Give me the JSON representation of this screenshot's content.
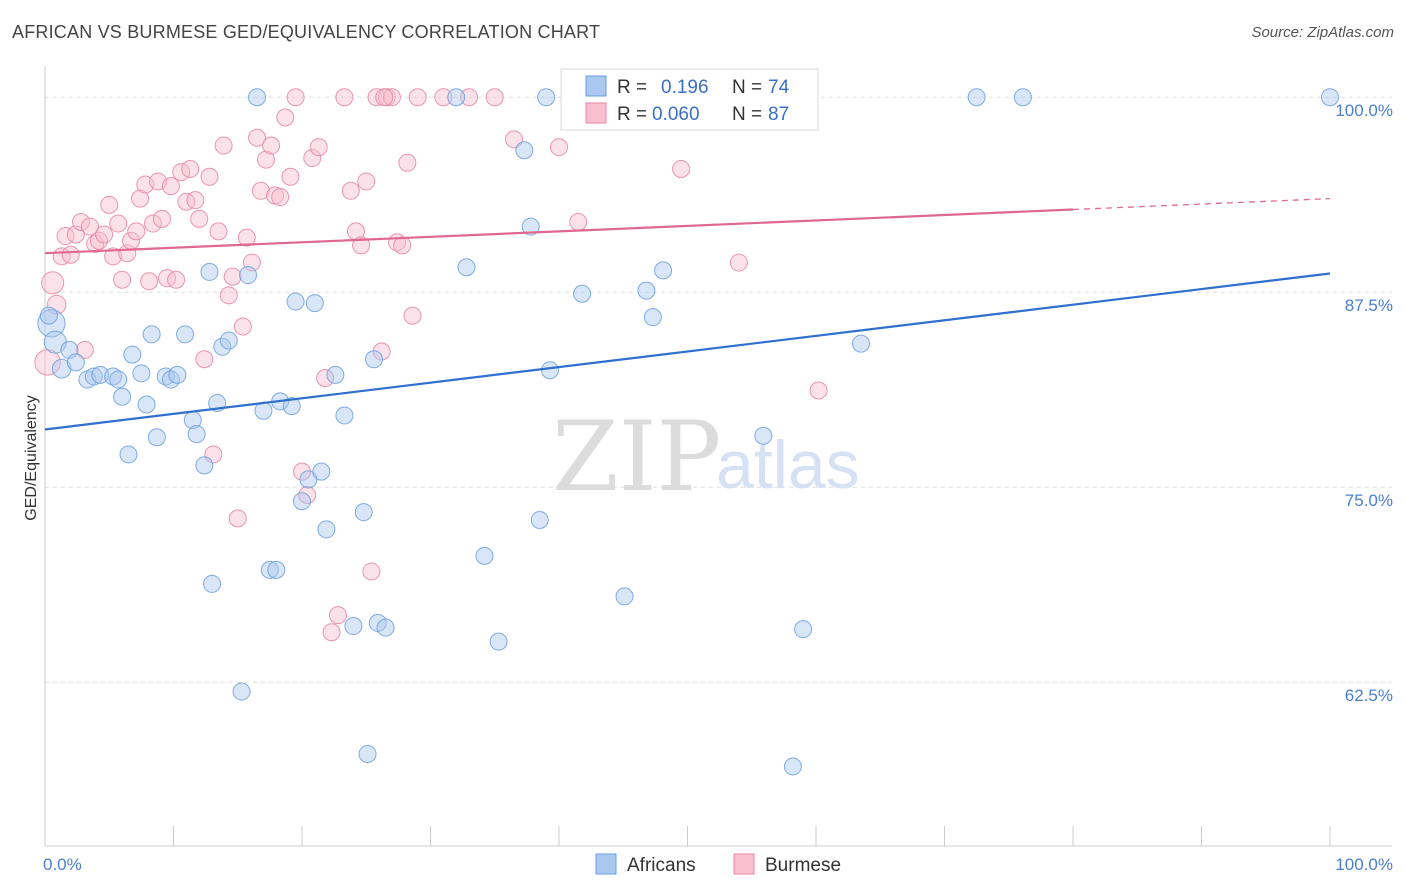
{
  "title": "AFRICAN VS BURMESE GED/EQUIVALENCY CORRELATION CHART",
  "source": "Source: ZipAtlas.com",
  "watermark": {
    "zip": "ZIP",
    "atlas": "atlas"
  },
  "colors": {
    "africans_fill": "#aac8f0",
    "africans_stroke": "#6b9fe0",
    "africans_line": "#2f6fd0",
    "burmese_fill": "#f7bfd0",
    "burmese_stroke": "#e8859f",
    "burmese_line": "#e06890",
    "grid": "#dddddd",
    "axis_text": "#4a7fd0"
  },
  "legend": {
    "row1": {
      "r_label": "R =",
      "r_value": "0.196",
      "n_label": "N =",
      "n_value": "74"
    },
    "row2": {
      "r_label": "R =",
      "r_value": "0.060",
      "n_label": "N =",
      "n_value": "87"
    }
  },
  "chart_data": {
    "type": "scatter",
    "title": "AFRICAN VS BURMESE GED/EQUIVALENCY CORRELATION CHART",
    "xlabel": "",
    "ylabel": "GED/Equivalency",
    "xlim": [
      0,
      100
    ],
    "ylim": [
      52.0,
      102.0
    ],
    "x_tick_labels": [
      "0.0%",
      "100.0%"
    ],
    "y_ticks": [
      62.5,
      75.0,
      87.5,
      100.0
    ],
    "y_tick_labels": [
      "62.5%",
      "75.0%",
      "87.5%",
      "100.0%"
    ],
    "grid": true,
    "legend_position": "top-center",
    "series": [
      {
        "name": "Africans",
        "r": 0.196,
        "n": 74,
        "trend": {
          "x0": 0,
          "y0": 78.7,
          "x1": 100,
          "y1": 88.7
        },
        "points": [
          [
            0.5,
            85.5,
            1.6
          ],
          [
            0.8,
            84.3,
            1.3
          ],
          [
            1.3,
            82.6,
            1.1
          ],
          [
            1.9,
            83.8,
            1
          ],
          [
            2.4,
            83.0,
            1
          ],
          [
            3.3,
            81.9,
            1
          ],
          [
            3.8,
            82.1,
            1
          ],
          [
            4.3,
            82.2,
            1
          ],
          [
            5.3,
            82.1,
            1
          ],
          [
            5.7,
            81.9,
            1
          ],
          [
            6.0,
            80.8,
            1
          ],
          [
            6.5,
            77.1,
            1
          ],
          [
            6.8,
            83.5,
            1
          ],
          [
            7.5,
            82.3,
            1
          ],
          [
            7.9,
            80.3,
            1
          ],
          [
            8.3,
            84.8,
            1
          ],
          [
            8.7,
            78.2,
            1
          ],
          [
            9.4,
            82.1,
            1
          ],
          [
            9.8,
            81.9,
            1
          ],
          [
            10.3,
            82.2,
            1
          ],
          [
            10.9,
            84.8,
            1
          ],
          [
            11.5,
            79.3,
            1
          ],
          [
            11.8,
            78.4,
            1
          ],
          [
            12.4,
            76.4,
            1
          ],
          [
            12.8,
            88.8,
            1
          ],
          [
            13.0,
            68.8,
            1
          ],
          [
            13.4,
            80.4,
            1
          ],
          [
            13.8,
            84.0,
            1
          ],
          [
            14.3,
            84.4,
            1
          ],
          [
            15.3,
            61.9,
            1
          ],
          [
            15.8,
            88.6,
            1
          ],
          [
            16.5,
            100.0,
            1
          ],
          [
            17.0,
            79.9,
            1
          ],
          [
            17.5,
            69.7,
            1
          ],
          [
            18.0,
            69.7,
            1
          ],
          [
            18.3,
            80.5,
            1
          ],
          [
            19.2,
            80.2,
            1
          ],
          [
            19.5,
            86.9,
            1
          ],
          [
            20.0,
            74.1,
            1
          ],
          [
            20.5,
            75.5,
            1
          ],
          [
            21.0,
            86.8,
            1
          ],
          [
            21.5,
            76.0,
            1
          ],
          [
            21.9,
            72.3,
            1
          ],
          [
            22.6,
            82.2,
            1
          ],
          [
            23.3,
            79.6,
            1
          ],
          [
            24.0,
            66.1,
            1
          ],
          [
            24.8,
            73.4,
            1
          ],
          [
            25.1,
            57.9,
            1
          ],
          [
            25.6,
            83.2,
            1
          ],
          [
            25.9,
            66.3,
            1
          ],
          [
            26.5,
            66.0,
            1
          ],
          [
            32.0,
            100.0,
            1
          ],
          [
            32.8,
            89.1,
            1
          ],
          [
            34.2,
            70.6,
            1
          ],
          [
            35.3,
            65.1,
            1
          ],
          [
            37.3,
            96.6,
            1
          ],
          [
            37.8,
            91.7,
            1
          ],
          [
            38.5,
            72.9,
            1
          ],
          [
            39.0,
            100.0,
            1
          ],
          [
            39.3,
            82.5,
            1
          ],
          [
            41.8,
            87.4,
            1
          ],
          [
            45.1,
            68.0,
            1
          ],
          [
            46.8,
            87.6,
            1
          ],
          [
            47.3,
            85.9,
            1
          ],
          [
            48.1,
            88.9,
            1
          ],
          [
            55.2,
            100.0,
            1
          ],
          [
            55.9,
            78.3,
            1
          ],
          [
            58.2,
            57.1,
            1
          ],
          [
            59.0,
            65.9,
            1
          ],
          [
            63.5,
            84.2,
            1
          ],
          [
            72.5,
            100.0,
            1
          ],
          [
            76.1,
            100.0,
            1
          ],
          [
            100.0,
            100.0,
            1
          ],
          [
            0.3,
            86.0,
            1
          ]
        ]
      },
      {
        "name": "Burmese",
        "r": 0.06,
        "n": 87,
        "trend": {
          "x0": 0,
          "y0": 90.0,
          "x1": 80,
          "y1": 92.8,
          "x_dash_end": 100,
          "y_dash_end": 93.5
        },
        "points": [
          [
            0.2,
            83.0,
            1.5
          ],
          [
            0.6,
            88.1,
            1.3
          ],
          [
            0.9,
            86.7,
            1.1
          ],
          [
            1.3,
            89.8,
            1
          ],
          [
            1.6,
            91.1,
            1
          ],
          [
            2.0,
            89.9,
            1
          ],
          [
            2.4,
            91.2,
            1
          ],
          [
            2.8,
            92.0,
            1
          ],
          [
            3.1,
            83.8,
            1
          ],
          [
            3.5,
            91.7,
            1
          ],
          [
            3.9,
            90.6,
            1
          ],
          [
            4.2,
            90.8,
            1
          ],
          [
            4.6,
            91.2,
            1
          ],
          [
            5.0,
            93.1,
            1
          ],
          [
            5.3,
            89.8,
            1
          ],
          [
            5.7,
            91.9,
            1
          ],
          [
            6.0,
            88.3,
            1
          ],
          [
            6.4,
            90.0,
            1
          ],
          [
            6.7,
            90.8,
            1
          ],
          [
            7.1,
            91.4,
            1
          ],
          [
            7.4,
            93.5,
            1
          ],
          [
            7.8,
            94.4,
            1
          ],
          [
            8.1,
            88.2,
            1
          ],
          [
            8.4,
            91.9,
            1
          ],
          [
            8.8,
            94.6,
            1
          ],
          [
            9.1,
            92.2,
            1
          ],
          [
            9.5,
            88.4,
            1
          ],
          [
            9.8,
            94.3,
            1
          ],
          [
            10.2,
            88.3,
            1
          ],
          [
            10.6,
            95.2,
            1
          ],
          [
            11.0,
            93.3,
            1
          ],
          [
            11.3,
            95.4,
            1
          ],
          [
            11.7,
            93.4,
            1
          ],
          [
            12.0,
            92.2,
            1
          ],
          [
            12.4,
            83.2,
            1
          ],
          [
            12.8,
            94.9,
            1
          ],
          [
            13.1,
            77.1,
            1
          ],
          [
            13.5,
            91.4,
            1
          ],
          [
            13.9,
            96.9,
            1
          ],
          [
            14.3,
            87.3,
            1
          ],
          [
            14.6,
            88.5,
            1
          ],
          [
            15.0,
            73.0,
            1
          ],
          [
            15.4,
            85.3,
            1
          ],
          [
            15.7,
            91.0,
            1
          ],
          [
            16.1,
            89.4,
            1
          ],
          [
            16.5,
            97.4,
            1
          ],
          [
            16.8,
            94.0,
            1
          ],
          [
            17.2,
            96.0,
            1
          ],
          [
            17.6,
            96.9,
            1
          ],
          [
            17.9,
            93.7,
            1
          ],
          [
            18.3,
            93.6,
            1
          ],
          [
            18.7,
            98.7,
            1
          ],
          [
            19.1,
            94.9,
            1
          ],
          [
            19.5,
            100.0,
            1
          ],
          [
            20.0,
            76.0,
            1
          ],
          [
            20.4,
            74.5,
            1
          ],
          [
            20.8,
            96.1,
            1
          ],
          [
            21.3,
            96.8,
            1
          ],
          [
            21.8,
            82.0,
            1
          ],
          [
            22.3,
            65.7,
            1
          ],
          [
            22.8,
            66.8,
            1
          ],
          [
            23.3,
            100.0,
            1
          ],
          [
            23.8,
            94.0,
            1
          ],
          [
            24.2,
            91.4,
            1
          ],
          [
            24.6,
            90.5,
            1
          ],
          [
            25.0,
            94.6,
            1
          ],
          [
            25.4,
            69.6,
            1
          ],
          [
            25.8,
            100.0,
            1
          ],
          [
            26.2,
            83.7,
            1
          ],
          [
            26.6,
            100.0,
            1
          ],
          [
            27.0,
            100.0,
            1
          ],
          [
            27.4,
            90.7,
            1
          ],
          [
            27.8,
            90.5,
            1
          ],
          [
            28.2,
            95.8,
            1
          ],
          [
            28.6,
            86.0,
            1
          ],
          [
            29.0,
            100.0,
            1
          ],
          [
            31.0,
            100.0,
            1
          ],
          [
            33.0,
            100.0,
            1
          ],
          [
            35.0,
            100.0,
            1
          ],
          [
            36.5,
            97.3,
            1
          ],
          [
            40.0,
            96.8,
            1
          ],
          [
            41.5,
            92.0,
            1
          ],
          [
            43.0,
            100.0,
            1
          ],
          [
            49.5,
            95.4,
            1
          ],
          [
            54.0,
            89.4,
            1
          ],
          [
            60.2,
            81.2,
            1
          ],
          [
            26.4,
            100.0,
            1
          ]
        ]
      }
    ]
  },
  "bottom_legend": {
    "africans": "Africans",
    "burmese": "Burmese"
  }
}
